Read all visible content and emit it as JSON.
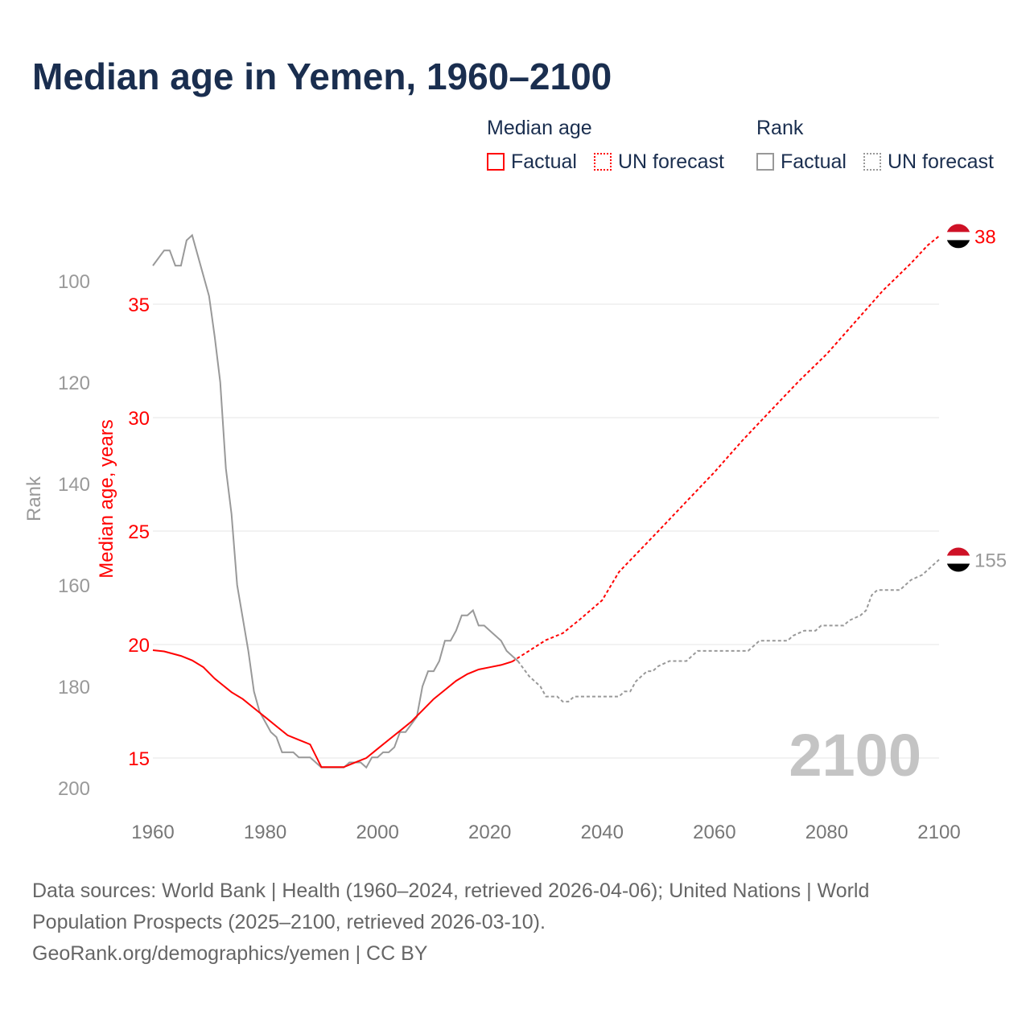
{
  "title": "Median age in Yemen, 1960–2100",
  "legend": {
    "group1": "Median age",
    "group2": "Rank",
    "factual": "Factual",
    "forecast": "UN forecast"
  },
  "source": {
    "line1": "Data sources: World Bank | Health (1960–2024, retrieved 2026-04-06); United Nations | World",
    "line2": "Population Prospects (2025–2100, retrieved 2026-03-10).",
    "line3": "GeoRank.org/demographics/yemen | CC BY"
  },
  "colors": {
    "age": "#ff0000",
    "rank": "#999999",
    "title": "#1a2e4f"
  },
  "chart_data": {
    "type": "line",
    "title": "Median age in Yemen, 1960–2100",
    "xlabel": "",
    "ylabel": "Median age, years",
    "y2label": "Rank",
    "xlim": [
      1960,
      2100
    ],
    "ylim": [
      14,
      39
    ],
    "y2lim": [
      86,
      205
    ],
    "xticks": [
      1960,
      1980,
      2000,
      2020,
      2040,
      2060,
      2080,
      2100
    ],
    "yticks": [
      15,
      20,
      25,
      30,
      35
    ],
    "y2ticks": [
      100,
      120,
      140,
      160,
      180,
      200
    ],
    "year_watermark": "2100",
    "end_labels": {
      "age": "38",
      "rank": "155"
    },
    "series": [
      {
        "name": "Median age – Factual",
        "x": [
          1960,
          1962,
          1965,
          1967,
          1969,
          1971,
          1972,
          1974,
          1976,
          1978,
          1980,
          1982,
          1984,
          1986,
          1988,
          1990,
          1994,
          1996,
          1998,
          2000,
          2002,
          2004,
          2006,
          2008,
          2010,
          2012,
          2014,
          2016,
          2018,
          2020,
          2022,
          2024
        ],
        "y": [
          19.75,
          19.7,
          19.5,
          19.3,
          19.0,
          18.5,
          18.3,
          17.9,
          17.6,
          17.2,
          16.8,
          16.4,
          16.0,
          15.8,
          15.6,
          14.6,
          14.6,
          14.8,
          15.0,
          15.4,
          15.8,
          16.2,
          16.6,
          17.1,
          17.6,
          18.0,
          18.4,
          18.7,
          18.9,
          19.0,
          19.1,
          19.25
        ]
      },
      {
        "name": "Median age – UN forecast",
        "x": [
          2024,
          2030,
          2033,
          2036,
          2040,
          2043,
          2050,
          2055,
          2060,
          2065,
          2070,
          2075,
          2080,
          2085,
          2090,
          2095,
          2098,
          2100
        ],
        "y": [
          19.25,
          20.2,
          20.5,
          21.1,
          21.95,
          23.2,
          25.0,
          26.3,
          27.6,
          29.0,
          30.3,
          31.6,
          32.8,
          34.2,
          35.6,
          36.8,
          37.6,
          38
        ]
      },
      {
        "name": "Rank – Factual",
        "x": [
          1960,
          1962,
          1963,
          1964,
          1965,
          1966,
          1967,
          1970,
          1971,
          1972,
          1973,
          1974,
          1975,
          1977,
          1978,
          1979,
          1981,
          1982,
          1983,
          1985,
          1986,
          1988,
          1990,
          1994,
          1995,
          1997,
          1998,
          1999,
          2000,
          2001,
          2002,
          2003,
          2004,
          2005,
          2007,
          2008,
          2009,
          2010,
          2011,
          2012,
          2013,
          2014,
          2015,
          2016,
          2017,
          2018,
          2019,
          2020,
          2022,
          2023,
          2024,
          2025
        ],
        "y": [
          97,
          94,
          94,
          97,
          97,
          92,
          91,
          103,
          111,
          120,
          137,
          146,
          160,
          173,
          181,
          185,
          189,
          190,
          193,
          193,
          194,
          194,
          196,
          196,
          195,
          195,
          196,
          194,
          194,
          193,
          193,
          192,
          189,
          189,
          186,
          180,
          177,
          177,
          175,
          171,
          171,
          169,
          166,
          166,
          165,
          168,
          168,
          169,
          171,
          173,
          174,
          175
        ]
      },
      {
        "name": "Rank – UN forecast",
        "x": [
          2025,
          2027,
          2029,
          2030,
          2032,
          2033,
          2034,
          2035,
          2043,
          2044,
          2045,
          2046,
          2048,
          2049,
          2050,
          2052,
          2055,
          2057,
          2066,
          2068,
          2073,
          2074,
          2076,
          2078,
          2079,
          2083,
          2084,
          2086,
          2087,
          2088,
          2089,
          2093,
          2095,
          2097,
          2099,
          2100
        ],
        "y": [
          175,
          178,
          180,
          182,
          182,
          183,
          183,
          182,
          182,
          181,
          181,
          179,
          177,
          177,
          176,
          175,
          175,
          173,
          173,
          171,
          171,
          170,
          169,
          169,
          168,
          168,
          167,
          166,
          165,
          162,
          161,
          161,
          159,
          158,
          156,
          155
        ]
      }
    ]
  }
}
